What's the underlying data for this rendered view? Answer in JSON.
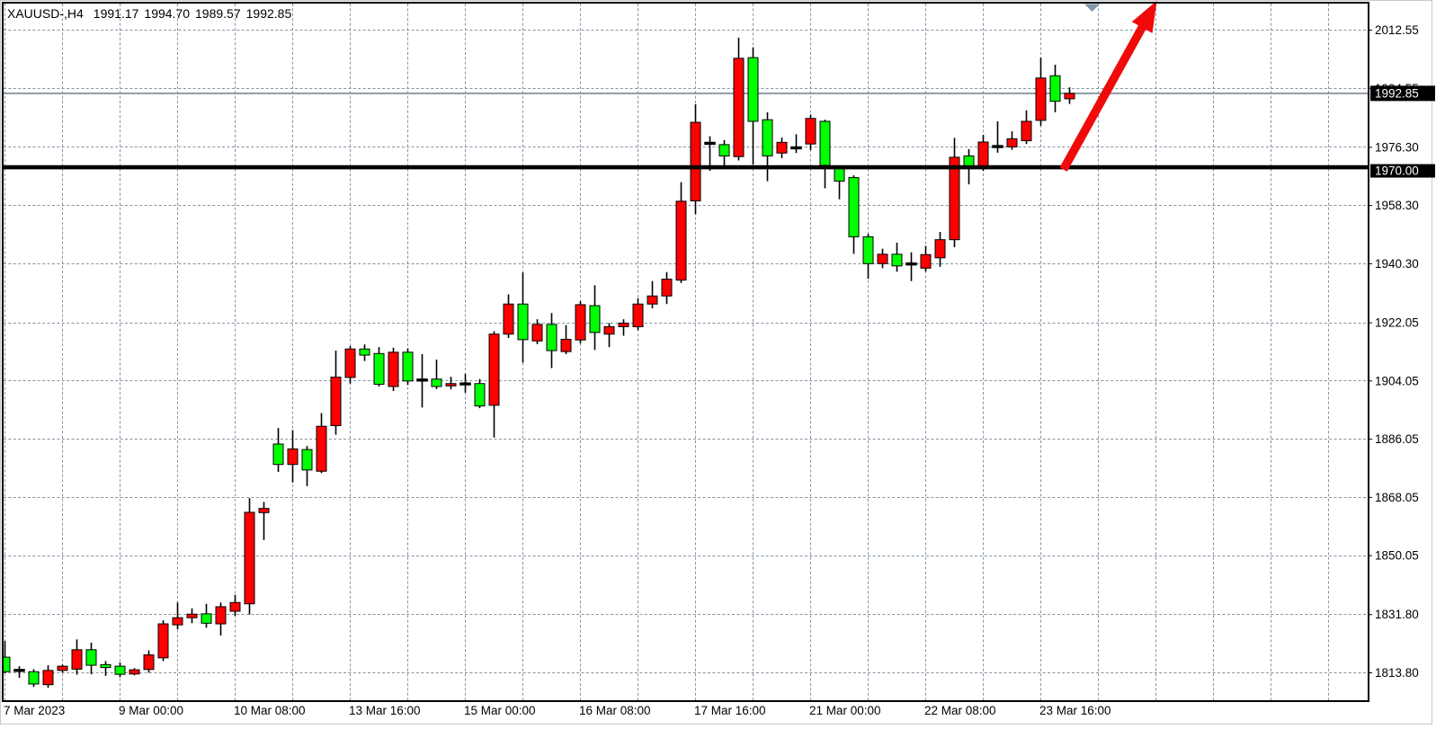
{
  "window": {
    "symbol_period": "XAUUSD-,H4",
    "quote": {
      "open": "1991.17",
      "high": "1994.70",
      "low": "1989.57",
      "close": "1992.85"
    }
  },
  "colors": {
    "bull": "#ff0000",
    "bear": "#00ff00",
    "wick": "#000000",
    "grid": "#8494a4",
    "current_price_line": "#6e7e8e",
    "support_line": "#000000",
    "arrow": "#f00a0a",
    "shift_marker": "#8296a8",
    "axis_text": "#000000",
    "tag_bg": "#000000",
    "tag_text": "#ffffff"
  },
  "price_axis": {
    "ticks": [
      "2012.55",
      "1994.55",
      "1976.30",
      "1958.30",
      "1940.30",
      "1922.05",
      "1904.05",
      "1886.05",
      "1868.05",
      "1850.05",
      "1831.80",
      "1813.80"
    ],
    "current_price_tag": "1992.85",
    "line_tag": "1970.00"
  },
  "time_axis": {
    "labels": [
      {
        "text": "7 Mar 2023",
        "bar": 0
      },
      {
        "text": "9 Mar 00:00",
        "bar": 8
      },
      {
        "text": "10 Mar 08:00",
        "bar": 16
      },
      {
        "text": "13 Mar 16:00",
        "bar": 24
      },
      {
        "text": "15 Mar 00:00",
        "bar": 32
      },
      {
        "text": "16 Mar 08:00",
        "bar": 40
      },
      {
        "text": "17 Mar 16:00",
        "bar": 48
      },
      {
        "text": "21 Mar 00:00",
        "bar": 56
      },
      {
        "text": "22 Mar 08:00",
        "bar": 64
      },
      {
        "text": "23 Mar 16:00",
        "bar": 72
      }
    ]
  },
  "chart_data": {
    "type": "candlestick",
    "symbol": "XAUUSD-",
    "timeframe": "H4",
    "title": "XAUUSD-,H4",
    "current_price": 1992.85,
    "axis_top_tick": 2012.55,
    "axis_bottom_tick": 1813.8,
    "grid": true,
    "candles": [
      [
        1818.5,
        1823.5,
        1813.6,
        1814.0
      ],
      [
        1814.2,
        1815.7,
        1812.1,
        1814.4
      ],
      [
        1814.0,
        1814.8,
        1809.3,
        1810.2
      ],
      [
        1810.0,
        1816.0,
        1809.0,
        1814.4
      ],
      [
        1814.4,
        1816.2,
        1813.7,
        1815.7
      ],
      [
        1814.8,
        1824.0,
        1813.1,
        1820.8
      ],
      [
        1820.8,
        1823.0,
        1813.2,
        1816.0
      ],
      [
        1816.2,
        1817.3,
        1812.7,
        1815.3
      ],
      [
        1815.7,
        1816.9,
        1812.3,
        1813.2
      ],
      [
        1813.3,
        1815.1,
        1812.9,
        1814.6
      ],
      [
        1814.7,
        1820.6,
        1813.7,
        1819.2
      ],
      [
        1818.3,
        1829.9,
        1817.3,
        1828.8
      ],
      [
        1828.5,
        1835.4,
        1827.1,
        1830.7
      ],
      [
        1830.7,
        1833.6,
        1829.0,
        1831.8
      ],
      [
        1831.9,
        1835.0,
        1827.6,
        1829.0
      ],
      [
        1828.8,
        1835.4,
        1825.2,
        1834.1
      ],
      [
        1832.7,
        1837.8,
        1831.3,
        1835.4
      ],
      [
        1835.0,
        1867.7,
        1831.7,
        1863.3
      ],
      [
        1863.2,
        1866.5,
        1854.7,
        1864.5
      ],
      [
        1884.4,
        1889.4,
        1875.8,
        1878.1
      ],
      [
        1878.1,
        1888.7,
        1872.5,
        1882.9
      ],
      [
        1882.7,
        1883.8,
        1871.4,
        1876.4
      ],
      [
        1876.0,
        1894.0,
        1875.4,
        1889.9
      ],
      [
        1890.1,
        1913.3,
        1887.3,
        1905.1
      ],
      [
        1905.0,
        1914.7,
        1903.1,
        1913.8
      ],
      [
        1913.8,
        1915.2,
        1910.1,
        1911.9
      ],
      [
        1912.4,
        1914.4,
        1902.2,
        1902.9
      ],
      [
        1902.2,
        1914.2,
        1900.8,
        1912.8
      ],
      [
        1912.8,
        1914.0,
        1902.7,
        1903.9
      ],
      [
        1903.9,
        1912.2,
        1895.7,
        1904.2
      ],
      [
        1904.5,
        1910.5,
        1901.4,
        1902.2
      ],
      [
        1902.4,
        1905.2,
        1901.3,
        1903.1
      ],
      [
        1902.9,
        1906.1,
        1900.3,
        1903.0
      ],
      [
        1903.1,
        1904.5,
        1895.5,
        1896.2
      ],
      [
        1896.4,
        1919.3,
        1886.4,
        1918.4
      ],
      [
        1918.4,
        1930.7,
        1917.2,
        1927.7
      ],
      [
        1927.7,
        1937.5,
        1909.6,
        1916.7
      ],
      [
        1916.3,
        1923.0,
        1915.3,
        1921.4
      ],
      [
        1921.4,
        1924.9,
        1907.9,
        1913.3
      ],
      [
        1913.0,
        1921.2,
        1912.2,
        1916.8
      ],
      [
        1916.6,
        1928.6,
        1915.5,
        1927.5
      ],
      [
        1927.2,
        1933.5,
        1913.5,
        1918.9
      ],
      [
        1918.4,
        1921.8,
        1914.4,
        1920.7
      ],
      [
        1920.7,
        1923.0,
        1917.9,
        1921.8
      ],
      [
        1920.7,
        1929.5,
        1919.6,
        1927.7
      ],
      [
        1927.7,
        1934.8,
        1926.4,
        1930.2
      ],
      [
        1930.2,
        1937.6,
        1927.7,
        1935.4
      ],
      [
        1935.1,
        1965.4,
        1934.2,
        1959.5
      ],
      [
        1959.6,
        1989.5,
        1955.5,
        1983.9
      ],
      [
        1977.3,
        1979.6,
        1968.9,
        1977.4
      ],
      [
        1977.0,
        1978.4,
        1969.6,
        1973.5
      ],
      [
        1973.3,
        2010.1,
        1972.1,
        2003.7
      ],
      [
        2003.9,
        2007.1,
        1970.9,
        1984.2
      ],
      [
        1984.7,
        1987.0,
        1965.7,
        1973.5
      ],
      [
        1974.4,
        1979.2,
        1972.8,
        1977.7
      ],
      [
        1975.9,
        1980.2,
        1974.4,
        1976.0
      ],
      [
        1977.2,
        1986.3,
        1975.3,
        1985.1
      ],
      [
        1984.2,
        1984.7,
        1963.5,
        1970.6
      ],
      [
        1969.8,
        1970.6,
        1960.1,
        1965.7
      ],
      [
        1966.8,
        1967.5,
        1943.2,
        1948.5
      ],
      [
        1948.5,
        1949.4,
        1935.5,
        1940.2
      ],
      [
        1940.2,
        1944.8,
        1938.8,
        1943.1
      ],
      [
        1943.1,
        1946.7,
        1937.7,
        1939.5
      ],
      [
        1940.0,
        1943.7,
        1934.8,
        1940.1
      ],
      [
        1938.8,
        1945.7,
        1937.7,
        1943.0
      ],
      [
        1942.0,
        1950.0,
        1939.2,
        1947.6
      ],
      [
        1947.6,
        1979.1,
        1945.3,
        1973.1
      ],
      [
        1973.5,
        1975.6,
        1964.7,
        1970.3
      ],
      [
        1969.9,
        1980.0,
        1968.9,
        1977.8
      ],
      [
        1976.3,
        1984.2,
        1974.5,
        1976.4
      ],
      [
        1976.3,
        1981.1,
        1975.4,
        1978.8
      ],
      [
        1978.2,
        1987.6,
        1977.2,
        1984.2
      ],
      [
        1984.5,
        2003.9,
        1982.8,
        1997.6
      ],
      [
        1998.3,
        2001.7,
        1987.0,
        1990.4
      ],
      [
        1991.17,
        1994.7,
        1989.57,
        1992.85
      ]
    ],
    "annotations": {
      "support_line": {
        "type": "hline",
        "price": 1970.0
      },
      "trend_arrow": {
        "type": "arrow",
        "from": {
          "bar": 73.6,
          "price": 1969.3
        },
        "to": {
          "bar": 80.1,
          "price": 2021.5
        }
      },
      "shift_marker": {
        "bar": 75.6
      }
    }
  }
}
